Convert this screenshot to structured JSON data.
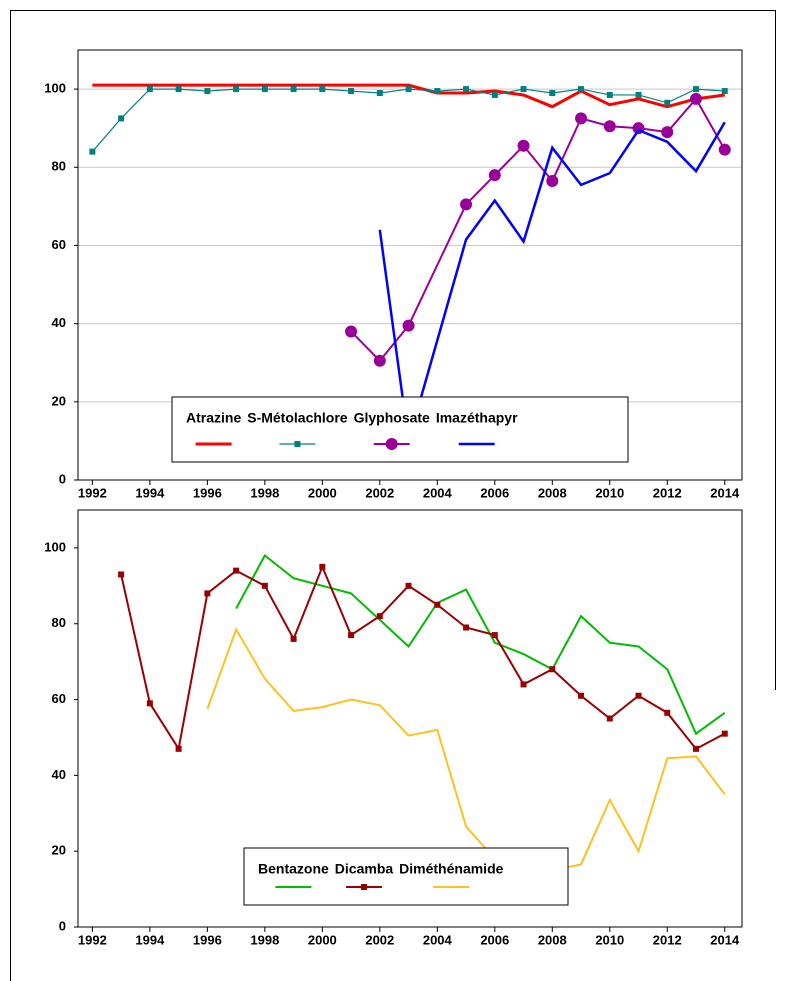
{
  "chart_data": [
    {
      "type": "line",
      "xlim": [
        1991.5,
        2014.6
      ],
      "xticks": [
        1992,
        1994,
        1996,
        1998,
        2000,
        2002,
        2004,
        2006,
        2008,
        2010,
        2012,
        2014
      ],
      "ylim": [
        0,
        110
      ],
      "yticks": [
        0,
        20,
        40,
        60,
        80,
        100
      ],
      "grid": true,
      "series": [
        {
          "name": "Atrazine",
          "color": "#ff0000",
          "width": 3,
          "marker": null,
          "x": [
            1992,
            1993,
            1994,
            1995,
            1996,
            1997,
            1998,
            1999,
            2000,
            2001,
            2002,
            2003,
            2004,
            2005,
            2006,
            2007,
            2008,
            2009,
            2010,
            2011,
            2012,
            2013,
            2014
          ],
          "values": [
            101,
            101,
            101,
            101,
            101,
            101,
            101,
            101,
            101,
            101,
            101,
            101,
            99,
            99,
            99.5,
            98.5,
            95.5,
            99.5,
            96,
            97.5,
            95.5,
            97.5,
            98.5
          ]
        },
        {
          "name": "S-Métolachlore",
          "color": "#008080",
          "width": 1.2,
          "marker": "square",
          "x": [
            1992,
            1993,
            1994,
            1995,
            1996,
            1997,
            1998,
            1999,
            2000,
            2001,
            2002,
            2003,
            2004,
            2005,
            2006,
            2007,
            2008,
            2009,
            2010,
            2011,
            2012,
            2013,
            2014
          ],
          "values": [
            84,
            92.5,
            100,
            100,
            99.5,
            100,
            100,
            100,
            100,
            99.5,
            99,
            100,
            99.5,
            100,
            98.5,
            100,
            99,
            100,
            98.5,
            98.5,
            96.5,
            100,
            99.5
          ]
        },
        {
          "name": "Glyphosate",
          "color": "#990099",
          "width": 2,
          "marker": "circle",
          "x": [
            2001,
            2002,
            2003,
            2005,
            2006,
            2007,
            2008,
            2009,
            2010,
            2011,
            2012,
            2013,
            2014
          ],
          "values": [
            38,
            30.5,
            39.5,
            70.5,
            78,
            85.5,
            76.5,
            92.5,
            90.5,
            90,
            89,
            97.5,
            84.5
          ]
        },
        {
          "name": "Imazéthapyr",
          "color": "#0000ff",
          "width": 2.5,
          "marker": null,
          "x": [
            2002,
            2003,
            2005,
            2006,
            2007,
            2008,
            2009,
            2010,
            2011,
            2012,
            2013,
            2014
          ],
          "values": [
            64,
            10,
            61.5,
            71.5,
            61,
            85,
            75.5,
            78.5,
            89.5,
            86.5,
            79,
            91.5
          ]
        }
      ]
    },
    {
      "type": "line",
      "xlim": [
        1991.5,
        2014.6
      ],
      "xticks": [
        1992,
        1994,
        1996,
        1998,
        2000,
        2002,
        2004,
        2006,
        2008,
        2010,
        2012,
        2014
      ],
      "ylim": [
        0,
        110
      ],
      "yticks": [
        0,
        20,
        40,
        60,
        80,
        100
      ],
      "grid": false,
      "series": [
        {
          "name": "Bentazone",
          "color": "#00bb00",
          "width": 2,
          "marker": null,
          "x": [
            1997,
            1998,
            1999,
            2000,
            2001,
            2002,
            2003,
            2004,
            2005,
            2006,
            2007,
            2008,
            2009,
            2010,
            2011,
            2012,
            2013,
            2014
          ],
          "values": [
            84,
            98,
            92,
            90,
            88,
            81,
            74,
            85.5,
            89,
            75,
            72,
            68,
            82,
            75,
            74,
            68,
            51,
            56.5
          ]
        },
        {
          "name": "Dicamba",
          "color": "#990000",
          "width": 2,
          "marker": "square",
          "x": [
            1993,
            1994,
            1995,
            1996,
            1997,
            1998,
            1999,
            2000,
            2001,
            2002,
            2003,
            2004,
            2005,
            2006,
            2007,
            2008,
            2009,
            2010,
            2011,
            2012,
            2013,
            2014
          ],
          "values": [
            93,
            59,
            47,
            88,
            94,
            90,
            76,
            95,
            77,
            82,
            90,
            85,
            79,
            77,
            64,
            68,
            61,
            55,
            61,
            56.5,
            47,
            51
          ]
        },
        {
          "name": "Diméthénamide",
          "color": "#ffc020",
          "width": 2,
          "marker": null,
          "x": [
            1996,
            1997,
            1998,
            1999,
            2000,
            2001,
            2002,
            2003,
            2004,
            2005,
            2006,
            2007,
            2008,
            2009,
            2010,
            2011,
            2012,
            2013,
            2014
          ],
          "values": [
            57.5,
            78.5,
            65.5,
            57,
            58,
            60,
            58.5,
            50.5,
            52,
            26.5,
            18,
            15,
            15,
            16.5,
            33.5,
            20,
            44.5,
            45,
            35
          ]
        }
      ]
    }
  ]
}
